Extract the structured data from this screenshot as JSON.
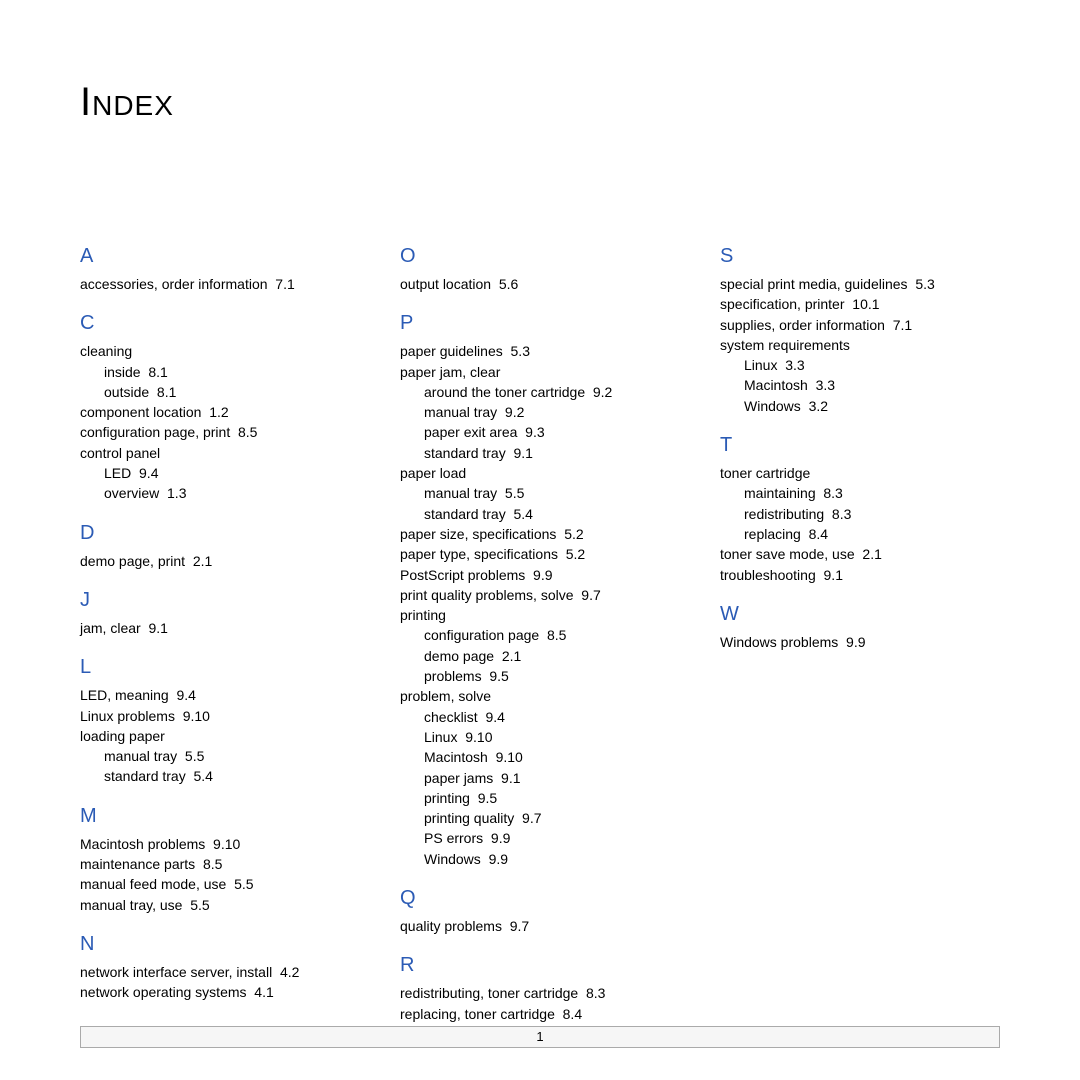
{
  "title": "Index",
  "page_number": "1",
  "colors": {
    "letter": "#2b5bb5",
    "text": "#000000",
    "footer_border": "#aaaaaa",
    "footer_bg": "#f6f6f6"
  },
  "columns": [
    [
      {
        "type": "letter",
        "text": "A"
      },
      {
        "type": "entry",
        "text": "accessories, order information",
        "ref": "7.1"
      },
      {
        "type": "letter",
        "text": "C"
      },
      {
        "type": "entry",
        "text": "cleaning"
      },
      {
        "type": "entry",
        "level": 1,
        "text": "inside",
        "ref": "8.1"
      },
      {
        "type": "entry",
        "level": 1,
        "text": "outside",
        "ref": "8.1"
      },
      {
        "type": "entry",
        "text": "component location",
        "ref": "1.2"
      },
      {
        "type": "entry",
        "text": "configuration page, print",
        "ref": "8.5"
      },
      {
        "type": "entry",
        "text": "control panel"
      },
      {
        "type": "entry",
        "level": 1,
        "text": "LED",
        "ref": "9.4"
      },
      {
        "type": "entry",
        "level": 1,
        "text": "overview",
        "ref": "1.3"
      },
      {
        "type": "letter",
        "text": "D"
      },
      {
        "type": "entry",
        "text": "demo page, print",
        "ref": "2.1"
      },
      {
        "type": "letter",
        "text": "J"
      },
      {
        "type": "entry",
        "text": "jam, clear",
        "ref": "9.1"
      },
      {
        "type": "letter",
        "text": "L"
      },
      {
        "type": "entry",
        "text": "LED, meaning",
        "ref": "9.4"
      },
      {
        "type": "entry",
        "text": "Linux problems",
        "ref": "9.10"
      },
      {
        "type": "entry",
        "text": "loading paper"
      },
      {
        "type": "entry",
        "level": 1,
        "text": "manual tray",
        "ref": "5.5"
      },
      {
        "type": "entry",
        "level": 1,
        "text": "standard tray",
        "ref": "5.4"
      },
      {
        "type": "letter",
        "text": "M"
      },
      {
        "type": "entry",
        "text": "Macintosh problems",
        "ref": "9.10"
      },
      {
        "type": "entry",
        "text": "maintenance parts",
        "ref": "8.5"
      },
      {
        "type": "entry",
        "text": "manual feed mode, use",
        "ref": "5.5"
      },
      {
        "type": "entry",
        "text": "manual tray, use",
        "ref": "5.5"
      },
      {
        "type": "letter",
        "text": "N"
      },
      {
        "type": "entry",
        "text": "network interface server, install",
        "ref": "4.2"
      },
      {
        "type": "entry",
        "text": "network operating systems",
        "ref": "4.1"
      }
    ],
    [
      {
        "type": "letter",
        "text": "O"
      },
      {
        "type": "entry",
        "text": "output location",
        "ref": "5.6"
      },
      {
        "type": "letter",
        "text": "P"
      },
      {
        "type": "entry",
        "text": "paper guidelines",
        "ref": "5.3"
      },
      {
        "type": "entry",
        "text": "paper jam, clear"
      },
      {
        "type": "entry",
        "level": 1,
        "text": "around the toner cartridge",
        "ref": "9.2"
      },
      {
        "type": "entry",
        "level": 1,
        "text": "manual tray",
        "ref": "9.2"
      },
      {
        "type": "entry",
        "level": 1,
        "text": "paper exit area",
        "ref": "9.3"
      },
      {
        "type": "entry",
        "level": 1,
        "text": "standard tray",
        "ref": "9.1"
      },
      {
        "type": "entry",
        "text": "paper load"
      },
      {
        "type": "entry",
        "level": 1,
        "text": "manual tray",
        "ref": "5.5"
      },
      {
        "type": "entry",
        "level": 1,
        "text": "standard tray",
        "ref": "5.4"
      },
      {
        "type": "entry",
        "text": "paper size, specifications",
        "ref": "5.2"
      },
      {
        "type": "entry",
        "text": "paper type, specifications",
        "ref": "5.2"
      },
      {
        "type": "entry",
        "text": "PostScript problems",
        "ref": "9.9"
      },
      {
        "type": "entry",
        "text": "print quality problems, solve",
        "ref": "9.7"
      },
      {
        "type": "entry",
        "text": "printing"
      },
      {
        "type": "entry",
        "level": 1,
        "text": "configuration page",
        "ref": "8.5"
      },
      {
        "type": "entry",
        "level": 1,
        "text": "demo page",
        "ref": "2.1"
      },
      {
        "type": "entry",
        "level": 1,
        "text": "problems",
        "ref": "9.5"
      },
      {
        "type": "entry",
        "text": "problem, solve"
      },
      {
        "type": "entry",
        "level": 1,
        "text": "checklist",
        "ref": "9.4"
      },
      {
        "type": "entry",
        "level": 1,
        "text": "Linux",
        "ref": "9.10"
      },
      {
        "type": "entry",
        "level": 1,
        "text": "Macintosh",
        "ref": "9.10"
      },
      {
        "type": "entry",
        "level": 1,
        "text": "paper jams",
        "ref": "9.1"
      },
      {
        "type": "entry",
        "level": 1,
        "text": "printing",
        "ref": "9.5"
      },
      {
        "type": "entry",
        "level": 1,
        "text": "printing quality",
        "ref": "9.7"
      },
      {
        "type": "entry",
        "level": 1,
        "text": "PS errors",
        "ref": "9.9"
      },
      {
        "type": "entry",
        "level": 1,
        "text": "Windows",
        "ref": "9.9"
      },
      {
        "type": "letter",
        "text": "Q"
      },
      {
        "type": "entry",
        "text": "quality problems",
        "ref": "9.7"
      },
      {
        "type": "letter",
        "text": "R"
      },
      {
        "type": "entry",
        "text": "redistributing, toner cartridge",
        "ref": "8.3"
      },
      {
        "type": "entry",
        "text": "replacing, toner cartridge",
        "ref": "8.4"
      }
    ],
    [
      {
        "type": "letter",
        "text": "S"
      },
      {
        "type": "entry",
        "text": "special print media, guidelines",
        "ref": "5.3"
      },
      {
        "type": "entry",
        "text": "specification, printer",
        "ref": "10.1"
      },
      {
        "type": "entry",
        "text": "supplies, order information",
        "ref": "7.1"
      },
      {
        "type": "entry",
        "text": "system requirements"
      },
      {
        "type": "entry",
        "level": 1,
        "text": "Linux",
        "ref": "3.3"
      },
      {
        "type": "entry",
        "level": 1,
        "text": "Macintosh",
        "ref": "3.3"
      },
      {
        "type": "entry",
        "level": 1,
        "text": "Windows",
        "ref": "3.2"
      },
      {
        "type": "letter",
        "text": "T"
      },
      {
        "type": "entry",
        "text": "toner cartridge"
      },
      {
        "type": "entry",
        "level": 1,
        "text": "maintaining",
        "ref": "8.3"
      },
      {
        "type": "entry",
        "level": 1,
        "text": "redistributing",
        "ref": "8.3"
      },
      {
        "type": "entry",
        "level": 1,
        "text": "replacing",
        "ref": "8.4"
      },
      {
        "type": "entry",
        "text": "toner save mode, use",
        "ref": "2.1"
      },
      {
        "type": "entry",
        "text": "troubleshooting",
        "ref": "9.1"
      },
      {
        "type": "letter",
        "text": "W"
      },
      {
        "type": "entry",
        "text": "Windows problems",
        "ref": "9.9"
      }
    ]
  ]
}
